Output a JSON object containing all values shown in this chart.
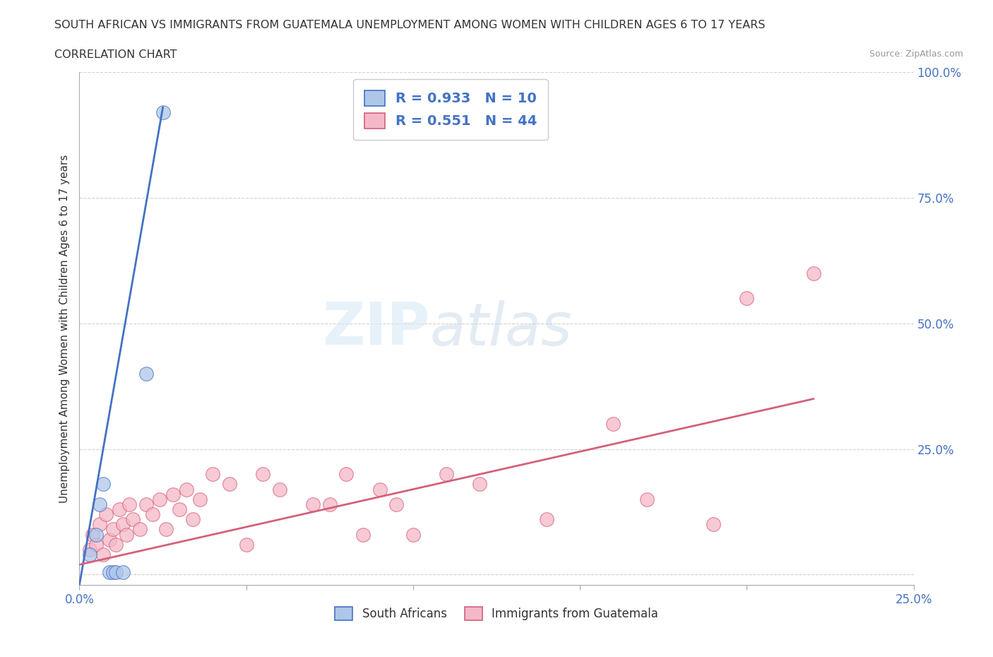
{
  "title_line1": "SOUTH AFRICAN VS IMMIGRANTS FROM GUATEMALA UNEMPLOYMENT AMONG WOMEN WITH CHILDREN AGES 6 TO 17 YEARS",
  "title_line2": "CORRELATION CHART",
  "source": "Source: ZipAtlas.com",
  "ylabel": "Unemployment Among Women with Children Ages 6 to 17 years",
  "xlim": [
    0.0,
    0.25
  ],
  "ylim": [
    -0.02,
    1.0
  ],
  "xticks": [
    0.0,
    0.05,
    0.1,
    0.15,
    0.2,
    0.25
  ],
  "yticks": [
    0.0,
    0.25,
    0.5,
    0.75,
    1.0
  ],
  "R_south_african": 0.933,
  "N_south_african": 10,
  "R_guatemalan": 0.551,
  "N_guatemalan": 44,
  "south_african_color": "#aec6e8",
  "guatemalan_color": "#f5b8c8",
  "south_african_line_color": "#4472c4",
  "guatemalan_line_color": "#d4607a",
  "legend_label_1": "South Africans",
  "legend_label_2": "Immigrants from Guatemala",
  "watermark_zip": "ZIP",
  "watermark_atlas": "atlas",
  "south_african_x": [
    0.003,
    0.005,
    0.006,
    0.007,
    0.009,
    0.01,
    0.011,
    0.013,
    0.02,
    0.025
  ],
  "south_african_y": [
    0.04,
    0.08,
    0.14,
    0.18,
    0.005,
    0.005,
    0.005,
    0.005,
    0.4,
    0.92
  ],
  "guatemalan_x": [
    0.003,
    0.004,
    0.005,
    0.006,
    0.007,
    0.008,
    0.009,
    0.01,
    0.011,
    0.012,
    0.013,
    0.014,
    0.015,
    0.016,
    0.018,
    0.02,
    0.022,
    0.024,
    0.026,
    0.028,
    0.03,
    0.032,
    0.034,
    0.036,
    0.04,
    0.045,
    0.05,
    0.055,
    0.06,
    0.07,
    0.075,
    0.08,
    0.085,
    0.09,
    0.095,
    0.1,
    0.11,
    0.12,
    0.14,
    0.16,
    0.17,
    0.19,
    0.2,
    0.22
  ],
  "guatemalan_y": [
    0.05,
    0.08,
    0.06,
    0.1,
    0.04,
    0.12,
    0.07,
    0.09,
    0.06,
    0.13,
    0.1,
    0.08,
    0.14,
    0.11,
    0.09,
    0.14,
    0.12,
    0.15,
    0.09,
    0.16,
    0.13,
    0.17,
    0.11,
    0.15,
    0.2,
    0.18,
    0.06,
    0.2,
    0.17,
    0.14,
    0.14,
    0.2,
    0.08,
    0.17,
    0.14,
    0.08,
    0.2,
    0.18,
    0.11,
    0.3,
    0.15,
    0.1,
    0.55,
    0.6
  ],
  "blue_line_x": [
    0.0,
    0.025
  ],
  "blue_line_y": [
    -0.02,
    0.93
  ],
  "pink_line_x": [
    0.0,
    0.22
  ],
  "pink_line_y": [
    0.02,
    0.35
  ]
}
